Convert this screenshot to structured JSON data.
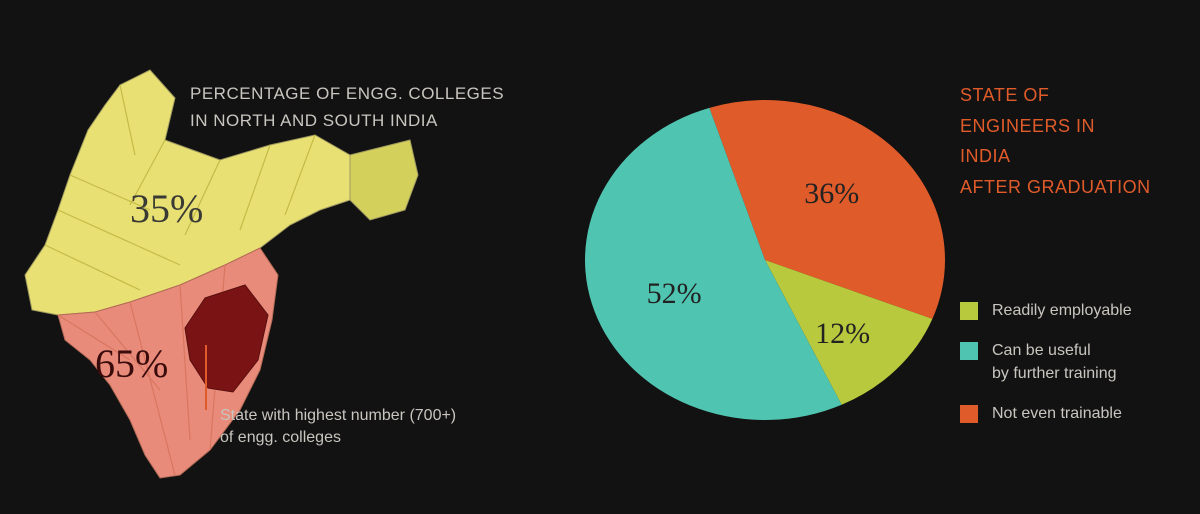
{
  "left": {
    "title_l1": "PERCENTAGE OF ENGG. COLLEGES",
    "title_l2": "IN NORTH AND SOUTH INDIA",
    "north_pct": "35%",
    "south_pct": "65%",
    "callout_l1": "State with highest number (700+)",
    "callout_l2": "of engg. colleges",
    "colors": {
      "north_fill": "#e8e073",
      "north_mid": "#d4d05c",
      "north_dark": "#c4bb47",
      "south_fill": "#e88b7a",
      "south_mid": "#d9765f",
      "highlight_state": "#7a1414",
      "stroke": "#a09a60",
      "callout_line": "#e05b2a"
    }
  },
  "right": {
    "title_l1": "STATE OF",
    "title_l2": "ENGINEERS IN",
    "title_l3": "INDIA",
    "title_l4": "AFTER GRADUATION",
    "pie": {
      "type": "pie",
      "slices": [
        {
          "label": "Readily employable",
          "value": 12,
          "pct": "12%",
          "color": "#b9c93d"
        },
        {
          "label": "Can be useful\nby further training",
          "value": 52,
          "pct": "52%",
          "color": "#4fc4b0"
        },
        {
          "label": "Not even trainable",
          "value": 36,
          "pct": "36%",
          "color": "#e05b2a"
        }
      ],
      "background": "#121212",
      "label_fontsize": 30,
      "label_color": "#222222",
      "tilt_deg": 12
    },
    "legend_fontsize": 16,
    "legend_color": "#c9c5bf"
  }
}
